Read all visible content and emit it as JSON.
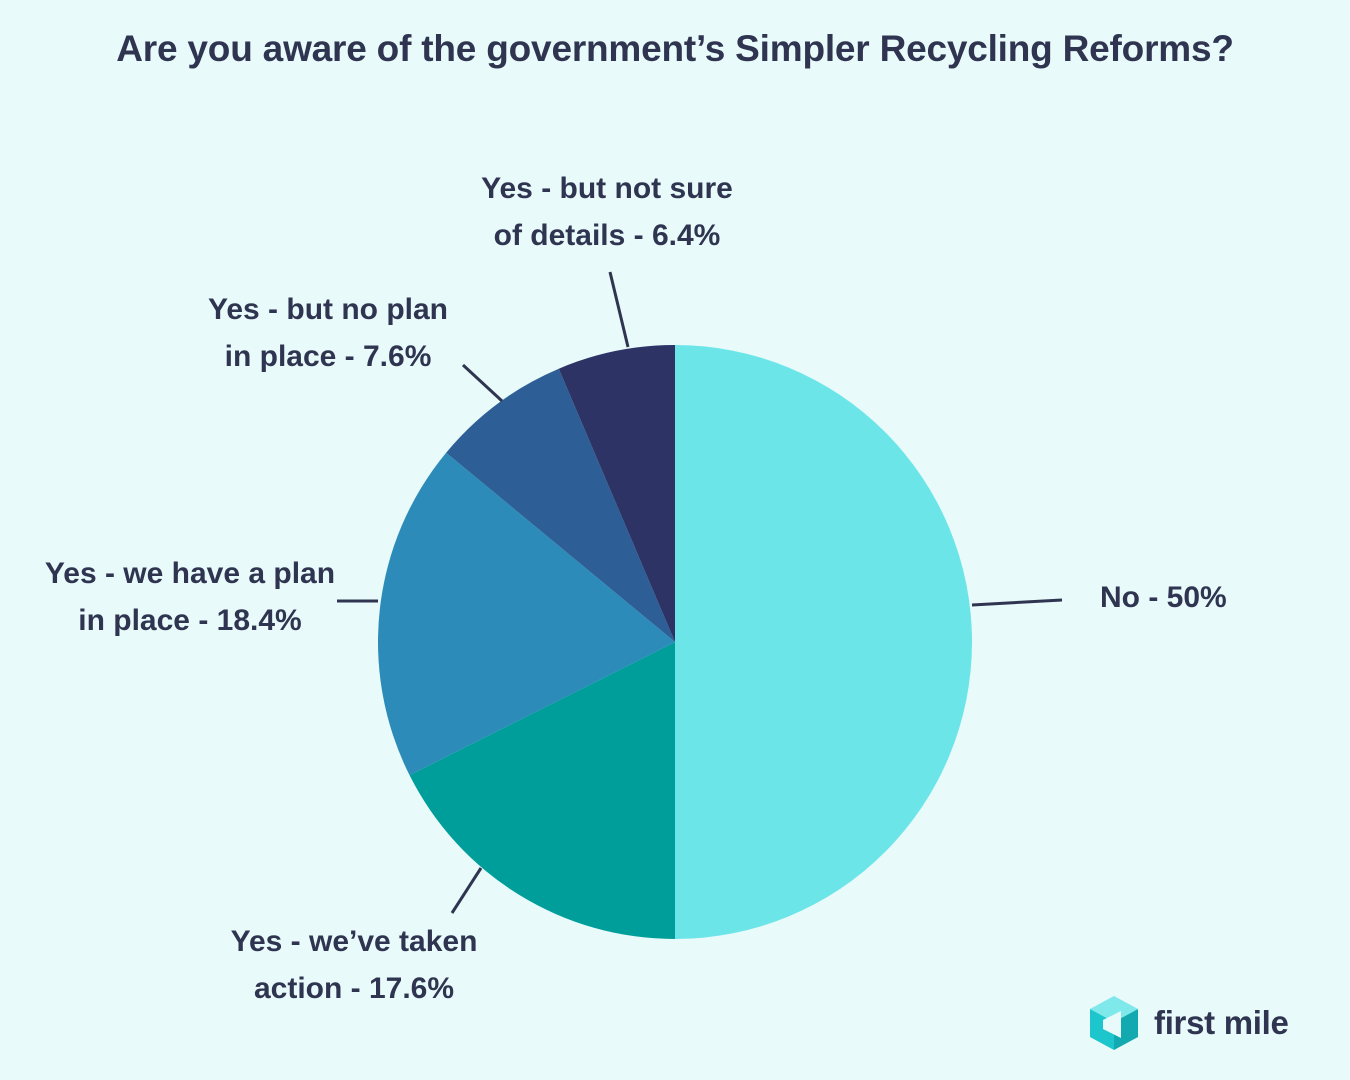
{
  "chart_data": {
    "type": "pie",
    "title": "Are you aware of the government’s Simpler Recycling Reforms?",
    "unit": "%",
    "slices": [
      {
        "label": "No - 50%",
        "label_lines": [
          "No - 50%"
        ],
        "value": 50,
        "color": "#6ce5e8"
      },
      {
        "label": "Yes - we’ve taken action - 17.6%",
        "label_lines": [
          "Yes - we’ve taken",
          "action - 17.6%"
        ],
        "value": 17.6,
        "color": "#009e9a"
      },
      {
        "label": "Yes - we have a plan in place - 18.4%",
        "label_lines": [
          "Yes - we have a plan",
          "in place - 18.4%"
        ],
        "value": 18.4,
        "color": "#2c8bb8"
      },
      {
        "label": "Yes - but no plan in place - 7.6%",
        "label_lines": [
          "Yes - but no plan",
          "in place - 7.6%"
        ],
        "value": 7.6,
        "color": "#2d5e96"
      },
      {
        "label": "Yes - but not sure of details - 6.4%",
        "label_lines": [
          "Yes - but not sure",
          "of details - 6.4%"
        ],
        "value": 6.4,
        "color": "#2e3366"
      }
    ],
    "legend": "none",
    "start": "top-clockwise"
  },
  "logo": {
    "text": "first mile",
    "icon": "first-mile-cube-logo-icon",
    "icon_color": "#1cc6cc"
  }
}
